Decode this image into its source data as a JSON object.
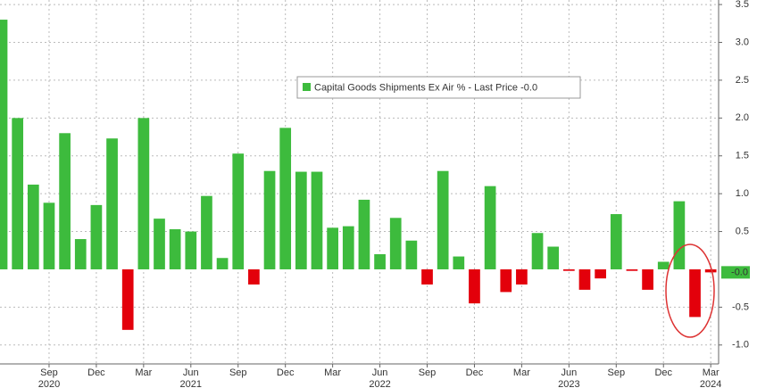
{
  "chart_data": {
    "type": "bar",
    "series": [
      {
        "name": "Capital Goods Shipments Ex Air %",
        "color": "#3dbb3d",
        "negative_color": "#e3000b",
        "values": [
          3.3,
          2.0,
          1.12,
          0.88,
          1.8,
          0.4,
          0.85,
          1.73,
          -0.8,
          2.0,
          0.67,
          0.53,
          0.5,
          0.97,
          0.15,
          1.53,
          -0.2,
          1.3,
          1.87,
          1.29,
          1.29,
          0.55,
          0.57,
          0.92,
          0.2,
          0.68,
          0.38,
          -0.2,
          1.3,
          0.17,
          -0.45,
          1.1,
          -0.3,
          -0.2,
          0.48,
          0.3,
          -0.02,
          -0.27,
          -0.12,
          0.73,
          -0.02,
          -0.27,
          0.1,
          0.9,
          -0.63,
          -0.04
        ]
      }
    ],
    "categories": [
      null,
      null,
      null,
      "Sep",
      null,
      null,
      "Dec",
      null,
      null,
      "Mar",
      null,
      null,
      "Jun",
      null,
      null,
      "Sep",
      null,
      null,
      "Dec",
      null,
      null,
      "Mar",
      null,
      null,
      "Jun",
      null,
      null,
      "Sep",
      null,
      null,
      "Dec",
      null,
      null,
      "Mar",
      null,
      null,
      "Jun",
      null,
      null,
      "Sep",
      null,
      null,
      "Dec",
      null,
      null,
      "Mar"
    ],
    "category_years": [
      null,
      null,
      null,
      "2020",
      null,
      null,
      null,
      null,
      null,
      null,
      null,
      null,
      "2021",
      null,
      null,
      null,
      null,
      null,
      null,
      null,
      null,
      null,
      null,
      null,
      "2022",
      null,
      null,
      null,
      null,
      null,
      null,
      null,
      null,
      null,
      null,
      null,
      "2023",
      null,
      null,
      null,
      null,
      null,
      null,
      null,
      null,
      "2024"
    ],
    "last_price": {
      "text": "- Last Price",
      "value": -0.04,
      "label": "-0.0"
    },
    "ylim": [
      -1.25,
      3.56
    ],
    "yticks": [
      3.5,
      {
        "value": 3,
        "label": "3.0"
      },
      2.5,
      {
        "value": 2,
        "label": "2.0"
      },
      1.5,
      {
        "value": 1,
        "label": "1.0"
      },
      0.5,
      -0.5,
      {
        "value": -1,
        "label": "-1.0"
      }
    ],
    "grid": true
  }
}
